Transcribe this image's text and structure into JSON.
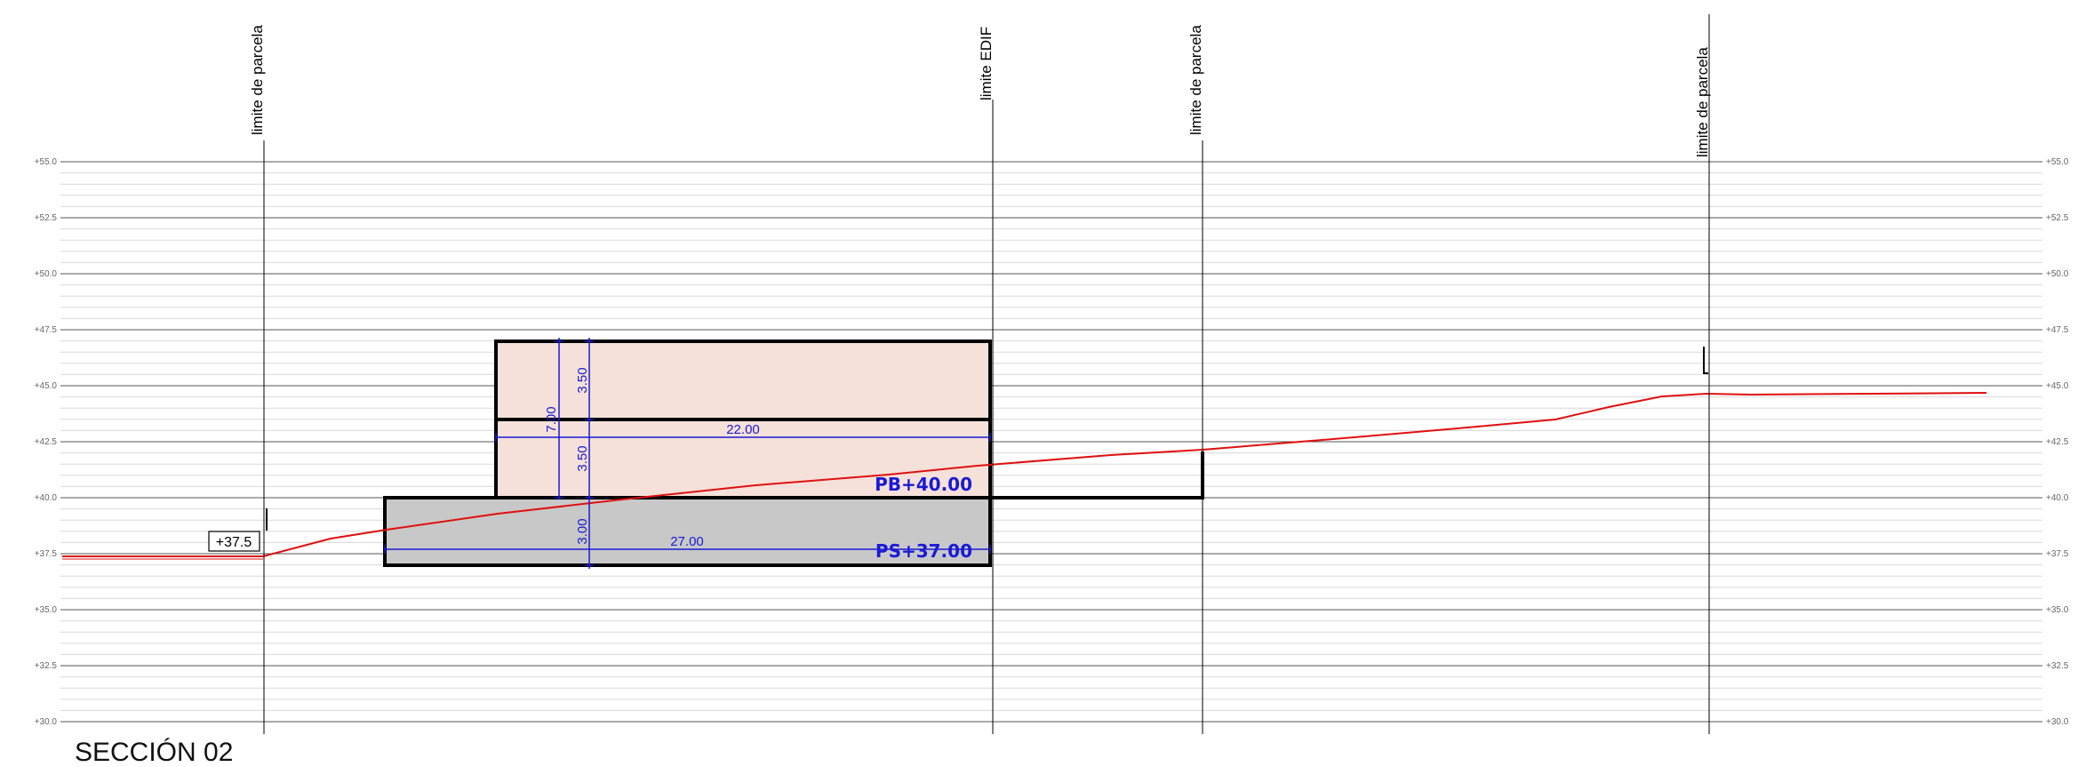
{
  "title": "SECCIÓN 02",
  "levels": [
    "+55.0",
    "+52.5",
    "+50.0",
    "+47.5",
    "+45.0",
    "+42.5",
    "+40.0",
    "+37.5",
    "+35.0",
    "+32.5",
    "+30.0"
  ],
  "limits": [
    {
      "label": "limite de parcela"
    },
    {
      "label": "limite EDIF"
    },
    {
      "label": "limite de parcela"
    },
    {
      "label": "limite de parcela"
    }
  ],
  "level_box": "+37.5",
  "dimensions": {
    "upper_height": "3.50",
    "lower_height": "3.50",
    "total_height": "7.00",
    "basement_height": "3.00",
    "upper_width": "22.00",
    "basement_width": "27.00"
  },
  "level_tags": {
    "ground": "PB+40.00",
    "basement": "PS+37.00"
  },
  "colors": {
    "building_fill": "#f5e1d9",
    "basement_fill": "#c8c8c8",
    "terrain": "#e01010",
    "dimension": "#1a1ad6"
  }
}
